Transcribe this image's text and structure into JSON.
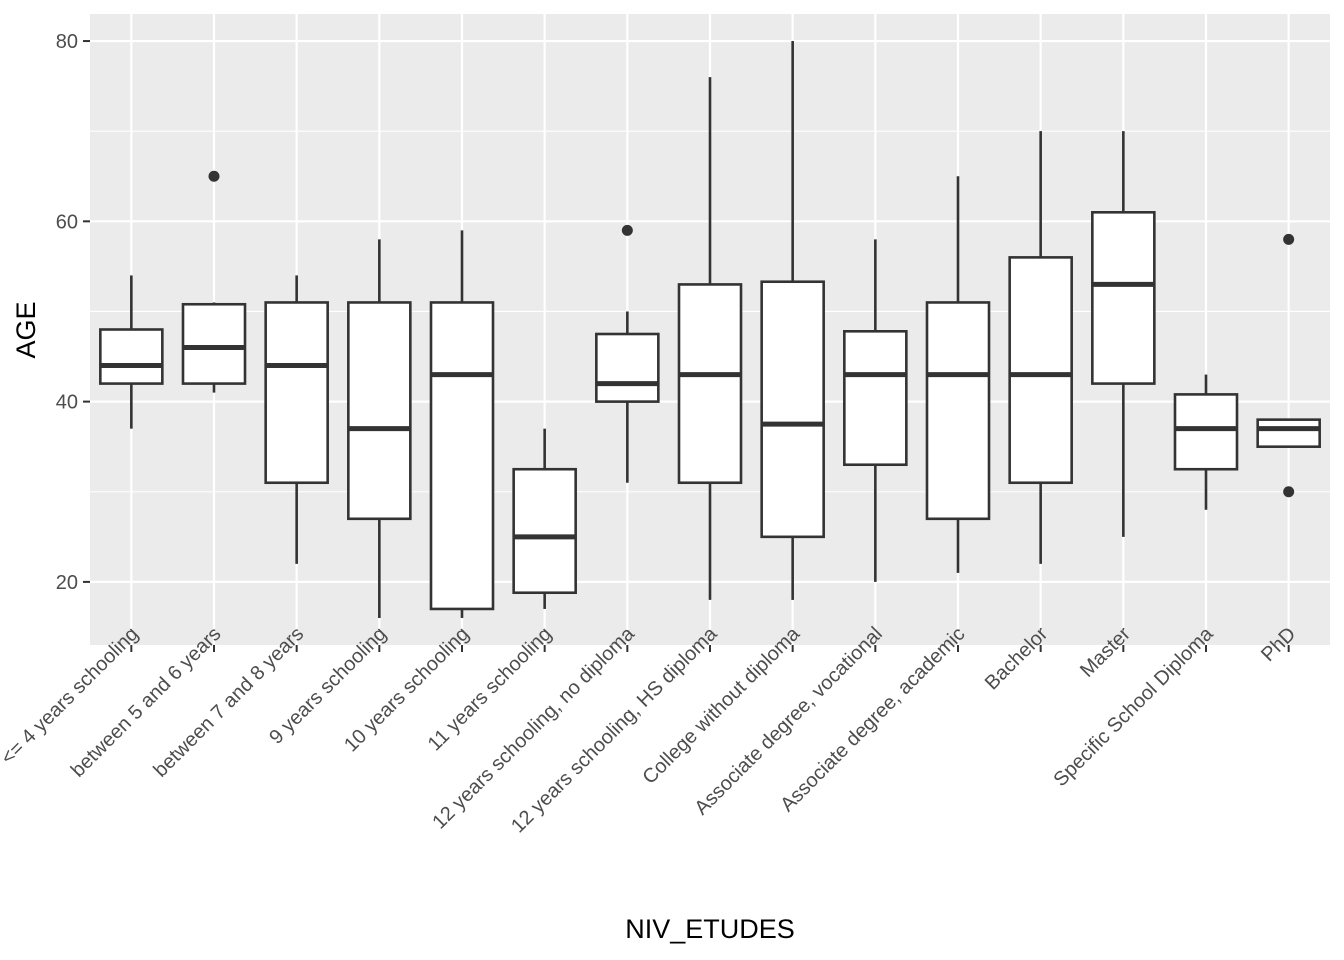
{
  "chart_data": {
    "type": "boxplot",
    "xlabel": "NIV_ETUDES",
    "ylabel": "AGE",
    "ylim": [
      13,
      83
    ],
    "yticks": [
      20,
      40,
      60,
      80
    ],
    "grid": true,
    "legend": "none",
    "colors": {
      "panel": "#ebebeb",
      "grid": "#ffffff",
      "box_fill": "#ffffff",
      "box_stroke": "#333333",
      "tick_text": "#4d4d4d",
      "title_text": "#000000"
    },
    "categories": [
      "<= 4 years schooling",
      "between 5 and 6 years",
      "between 7 and 8 years",
      "9 years schooling",
      "10 years schooling",
      "11 years schooling",
      "12 years schooling, no diploma",
      "12 years schooling, HS diploma",
      "College without diploma",
      "Associate degree, vocational",
      "Associate degree, academic",
      "Bachelor",
      "Master",
      "Specific School Diploma",
      "PhD"
    ],
    "boxes": [
      {
        "whisker_low": 37,
        "q1": 42,
        "median": 44,
        "q3": 48,
        "whisker_high": 54,
        "outliers": []
      },
      {
        "whisker_low": 41,
        "q1": 42,
        "median": 46,
        "q3": 50.8,
        "whisker_high": 51,
        "outliers": [
          65
        ]
      },
      {
        "whisker_low": 22,
        "q1": 31,
        "median": 44,
        "q3": 51,
        "whisker_high": 54,
        "outliers": []
      },
      {
        "whisker_low": 16,
        "q1": 27,
        "median": 37,
        "q3": 51,
        "whisker_high": 58,
        "outliers": []
      },
      {
        "whisker_low": 16,
        "q1": 17,
        "median": 43,
        "q3": 51,
        "whisker_high": 59,
        "outliers": []
      },
      {
        "whisker_low": 17,
        "q1": 18.8,
        "median": 25,
        "q3": 32.5,
        "whisker_high": 37,
        "outliers": []
      },
      {
        "whisker_low": 31,
        "q1": 40,
        "median": 42,
        "q3": 47.5,
        "whisker_high": 50,
        "outliers": [
          59
        ]
      },
      {
        "whisker_low": 18,
        "q1": 31,
        "median": 43,
        "q3": 53,
        "whisker_high": 76,
        "outliers": []
      },
      {
        "whisker_low": 18,
        "q1": 25,
        "median": 37.5,
        "q3": 53.3,
        "whisker_high": 80,
        "outliers": []
      },
      {
        "whisker_low": 20,
        "q1": 33,
        "median": 43,
        "q3": 47.8,
        "whisker_high": 58,
        "outliers": []
      },
      {
        "whisker_low": 21,
        "q1": 27,
        "median": 43,
        "q3": 51,
        "whisker_high": 65,
        "outliers": []
      },
      {
        "whisker_low": 22,
        "q1": 31,
        "median": 43,
        "q3": 56,
        "whisker_high": 70,
        "outliers": []
      },
      {
        "whisker_low": 25,
        "q1": 42,
        "median": 53,
        "q3": 61,
        "whisker_high": 70,
        "outliers": []
      },
      {
        "whisker_low": 28,
        "q1": 32.5,
        "median": 37,
        "q3": 40.8,
        "whisker_high": 43,
        "outliers": []
      },
      {
        "whisker_low": 35,
        "q1": 35,
        "median": 37,
        "q3": 38,
        "whisker_high": 38,
        "outliers": [
          58,
          30
        ]
      }
    ]
  }
}
